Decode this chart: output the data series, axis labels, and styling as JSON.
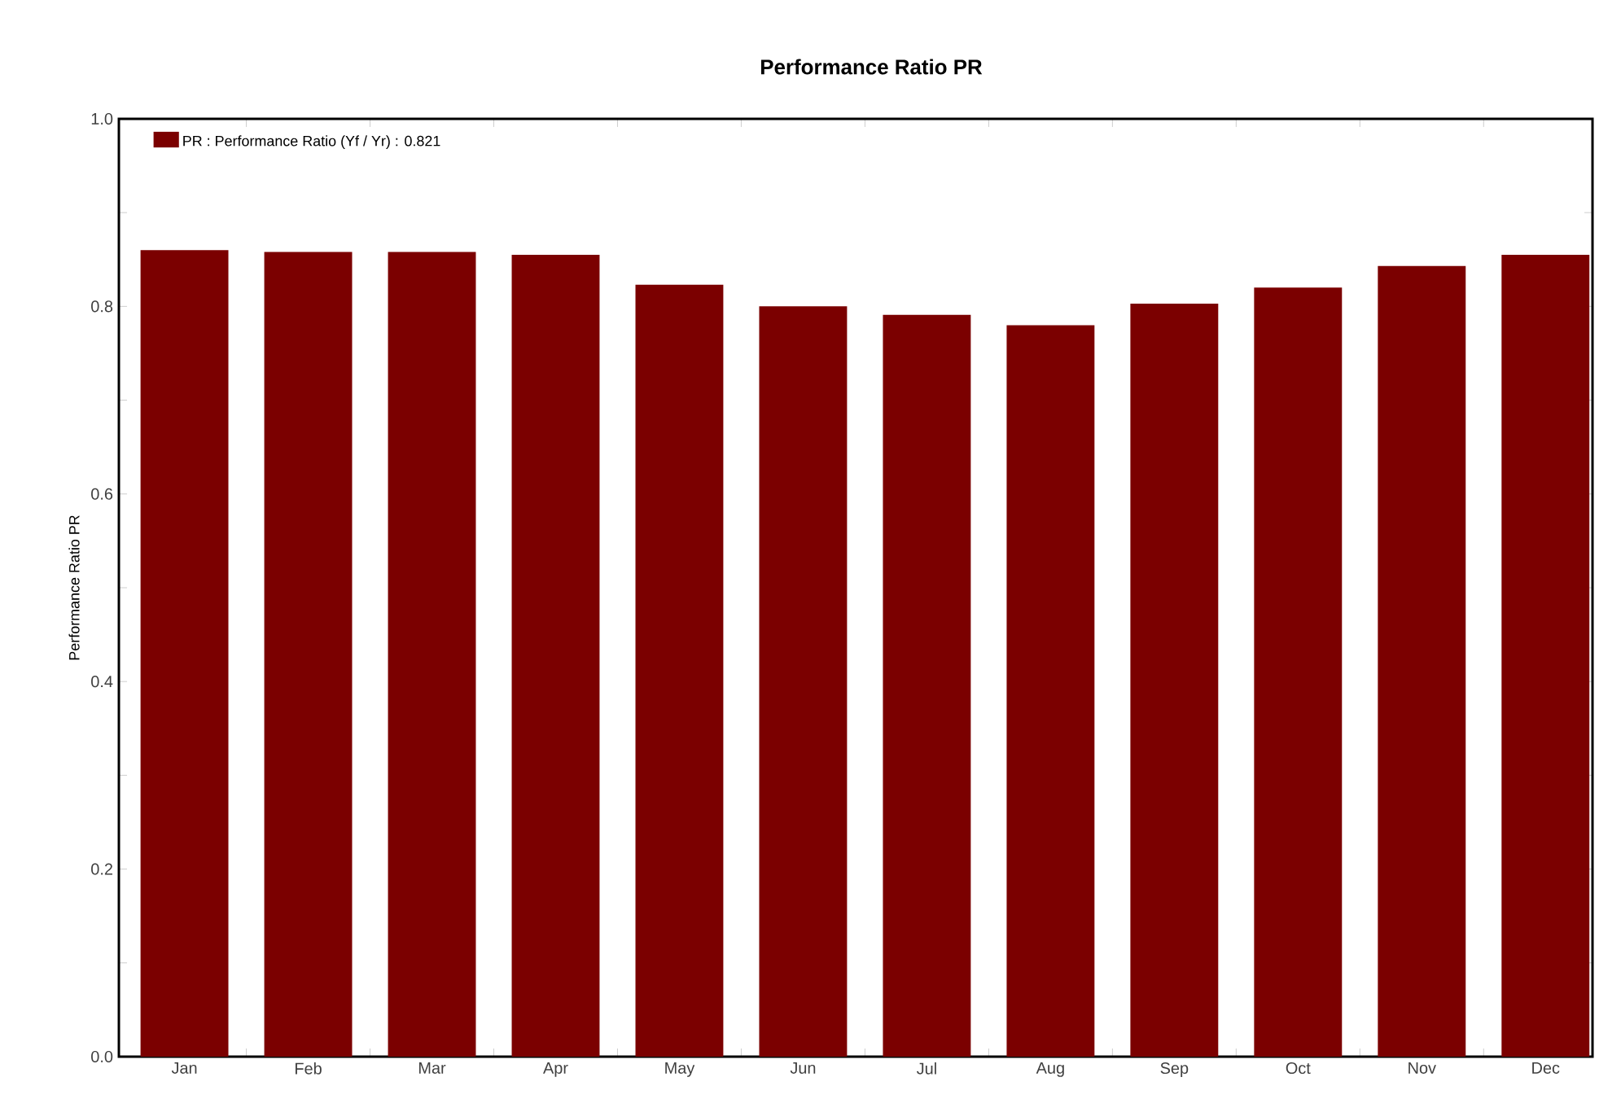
{
  "chart_data": {
    "type": "bar",
    "title": "Performance Ratio PR",
    "ylabel": "Performance Ratio PR",
    "categories": [
      "Jan",
      "Feb",
      "Mar",
      "Apr",
      "May",
      "Jun",
      "Jul",
      "Aug",
      "Sep",
      "Oct",
      "Nov",
      "Dec"
    ],
    "series": [
      {
        "name": "PR : Performance Ratio (Yf / Yr) :  0.821",
        "color": "#7b0000",
        "values": [
          0.86,
          0.858,
          0.858,
          0.855,
          0.823,
          0.8,
          0.791,
          0.78,
          0.803,
          0.82,
          0.843,
          0.855
        ]
      }
    ],
    "ylim": [
      0,
      1
    ],
    "yticks": [
      {
        "value": 0,
        "label": "0.0"
      },
      {
        "value": 0.2,
        "label": "0.2"
      },
      {
        "value": 0.4,
        "label": "0.4"
      },
      {
        "value": 0.6,
        "label": "0.6"
      },
      {
        "value": 0.8,
        "label": "0.8"
      },
      {
        "value": 1,
        "label": "1.0"
      }
    ],
    "legend": "top left",
    "grid": false
  }
}
